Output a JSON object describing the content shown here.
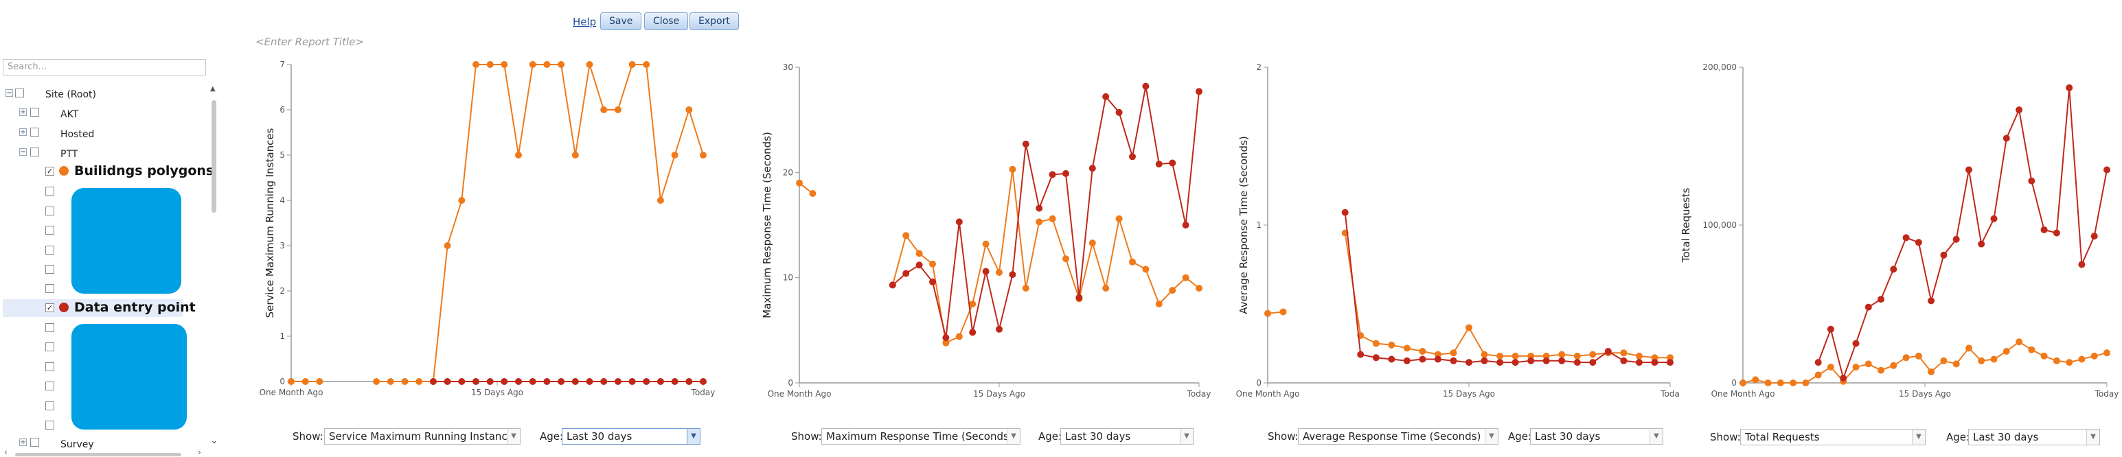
{
  "toolbar": {
    "help_label": "Help",
    "save_label": "Save",
    "close_label": "Close",
    "export_label": "Export"
  },
  "report_title_placeholder": "<Enter Report Title>",
  "tree": {
    "search_placeholder": "Search...",
    "nodes": {
      "root": "Site (Root)",
      "akt": "AKT",
      "hosted": "Hosted",
      "ptt": "PTT",
      "layer1": "Builidngs polygons",
      "layer2": "Data entry point",
      "survey": "Survey"
    },
    "layer1_color": "#f07a1a",
    "layer2_color": "#c0281a",
    "swatch_color": "#00a0e4"
  },
  "colors": {
    "series_dark": "#c0281a",
    "series_orange": "#f07a1a",
    "axis": "#9a9a9a"
  },
  "controls": {
    "show_label": "Show:",
    "age_label": "Age:",
    "age_value": "Last 30 days",
    "chart1_show": "Service Maximum Running Instances",
    "chart2_show": "Maximum Response Time (Seconds)",
    "chart3_show": "Average Response Time (Seconds)",
    "chart4_show": "Total Requests"
  },
  "chart_data": [
    {
      "type": "line",
      "ylabel": "Service Maximum Running Instances",
      "x_ticks": [
        "One Month Ago",
        "15 Days Ago",
        "Today"
      ],
      "ylim": [
        0,
        7
      ],
      "y_ticks": [
        0,
        1,
        2,
        3,
        4,
        5,
        6,
        7
      ],
      "y_tick_labels": [
        "0",
        "1",
        "2",
        "3",
        "4",
        "5",
        "6",
        "7"
      ],
      "series": [
        {
          "color": "#f07a1a",
          "values": [
            0,
            0,
            0,
            null,
            null,
            null,
            0,
            0,
            0,
            0,
            0,
            3,
            4,
            7,
            7,
            7,
            5,
            7,
            7,
            7,
            5,
            7,
            6,
            6,
            7,
            7,
            4,
            5,
            6,
            5
          ]
        },
        {
          "color": "#c0281a",
          "values": [
            null,
            null,
            null,
            null,
            null,
            null,
            null,
            null,
            null,
            null,
            0,
            0,
            0,
            0,
            0,
            0,
            0,
            0,
            0,
            0,
            0,
            0,
            0,
            0,
            0,
            0,
            0,
            0,
            0,
            0
          ]
        }
      ]
    },
    {
      "type": "line",
      "ylabel": "Maximum Response Time (Seconds)",
      "x_ticks": [
        "One Month Ago",
        "15 Days Ago",
        "Today"
      ],
      "ylim": [
        0,
        30
      ],
      "y_ticks": [
        0,
        10,
        20,
        30
      ],
      "y_tick_labels": [
        "0",
        "10",
        "20",
        "30"
      ],
      "series": [
        {
          "color": "#f07a1a",
          "values": [
            19,
            18,
            null,
            null,
            null,
            null,
            null,
            9.3,
            14,
            12.3,
            11.3,
            3.8,
            4.4,
            7.5,
            13.2,
            10.5,
            20.3,
            9,
            15.3,
            15.6,
            11.8,
            8,
            13.3,
            9,
            15.6,
            11.5,
            10.8,
            7.5,
            8.8,
            10,
            9
          ]
        },
        {
          "color": "#c0281a",
          "values": [
            null,
            null,
            null,
            null,
            null,
            null,
            null,
            9.3,
            10.4,
            11.2,
            9.6,
            4.3,
            15.3,
            4.8,
            10.6,
            5.1,
            10.3,
            22.7,
            16.6,
            19.8,
            19.9,
            8.1,
            20.4,
            27.2,
            25.7,
            21.5,
            28.2,
            20.8,
            20.9,
            15,
            27.7
          ]
        }
      ]
    },
    {
      "type": "line",
      "ylabel": "Average Response Time (Seconds)",
      "x_ticks": [
        "One Month Ago",
        "15 Days Ago",
        "Toda"
      ],
      "ylim": [
        0,
        2
      ],
      "y_ticks": [
        0,
        1,
        2
      ],
      "y_tick_labels": [
        "0",
        "1",
        "2"
      ],
      "series": [
        {
          "color": "#f07a1a",
          "values": [
            0.44,
            0.45,
            null,
            null,
            null,
            0.95,
            0.3,
            0.25,
            0.24,
            0.22,
            0.2,
            0.18,
            0.19,
            0.35,
            0.18,
            0.17,
            0.17,
            0.17,
            0.17,
            0.18,
            0.17,
            0.18,
            0.19,
            0.19,
            0.17,
            0.16,
            0.16
          ]
        },
        {
          "color": "#c0281a",
          "values": [
            null,
            null,
            null,
            null,
            null,
            1.08,
            0.18,
            0.16,
            0.15,
            0.14,
            0.15,
            0.15,
            0.14,
            0.13,
            0.14,
            0.13,
            0.13,
            0.14,
            0.14,
            0.14,
            0.13,
            0.13,
            0.2,
            0.14,
            0.13,
            0.13,
            0.13
          ]
        }
      ]
    },
    {
      "type": "line",
      "ylabel": "Total Requests",
      "x_ticks": [
        "One Month Ago",
        "15 Days Ago",
        "Today"
      ],
      "ylim": [
        0,
        200000
      ],
      "y_ticks": [
        0,
        100000,
        200000
      ],
      "y_tick_labels": [
        "0",
        "100,000",
        "200,000"
      ],
      "series": [
        {
          "color": "#f07a1a",
          "values": [
            0,
            2000,
            0,
            0,
            0,
            0,
            5000,
            10000,
            1000,
            10000,
            12000,
            8000,
            11000,
            16000,
            17000,
            7000,
            14000,
            12000,
            22000,
            14000,
            15000,
            20000,
            26000,
            21000,
            17000,
            14000,
            13000,
            15000,
            17000,
            19000
          ]
        },
        {
          "color": "#c0281a",
          "values": [
            null,
            null,
            null,
            null,
            null,
            null,
            13000,
            34000,
            3000,
            25000,
            48000,
            53000,
            72000,
            92000,
            89000,
            52000,
            81000,
            91000,
            135000,
            88000,
            104000,
            155000,
            173000,
            128000,
            97000,
            95000,
            187000,
            75000,
            93000,
            135000
          ]
        }
      ]
    }
  ]
}
